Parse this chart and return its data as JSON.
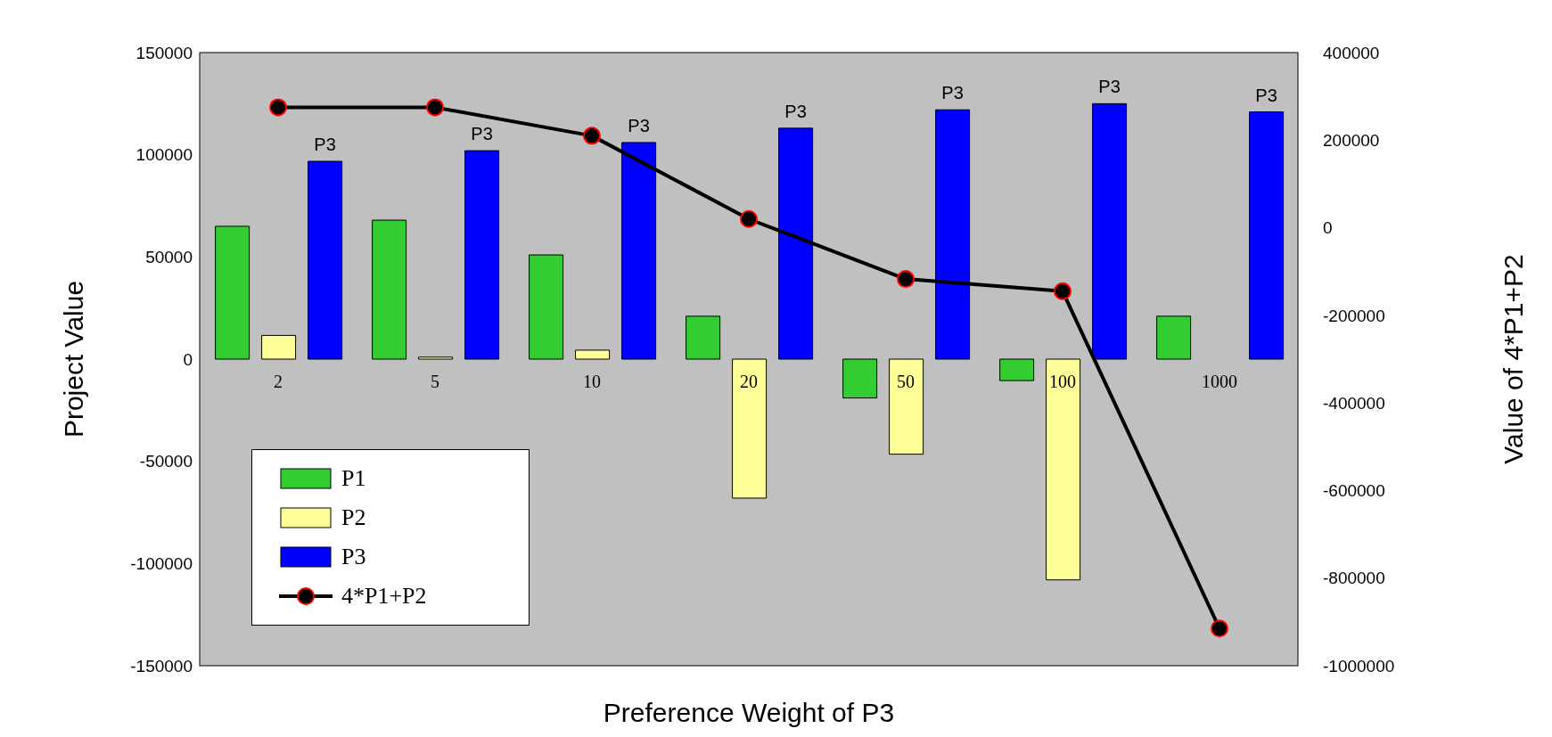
{
  "chart_data": {
    "type": "bar",
    "xlabel": "Preference Weight of P3",
    "ylabel": "Project Value",
    "y2label": "Value of  4*P1+P2",
    "categories": [
      "2",
      "5",
      "10",
      "20",
      "50",
      "100",
      "1000"
    ],
    "series": [
      {
        "name": "P1",
        "color": "#33cc33",
        "values": [
          65000,
          68000,
          51000,
          21000,
          -19000,
          -10500,
          21000
        ]
      },
      {
        "name": "P2",
        "color": "#ffff99",
        "values": [
          11600,
          1000,
          4400,
          -68000,
          -46500,
          -108000,
          0
        ]
      },
      {
        "name": "P3",
        "color": "#0000ff",
        "values": [
          96800,
          102000,
          106000,
          113000,
          122000,
          125000,
          121000
        ],
        "value_labels": [
          "P3",
          "P3",
          "P3",
          "P3",
          "P3",
          "P3",
          "P3"
        ]
      },
      {
        "name": "4*P1+P2",
        "type": "line",
        "axis": "y2",
        "color": "#000000",
        "marker": "circle",
        "values": [
          275000,
          275000,
          210000,
          20000,
          -117000,
          -145000,
          -915000
        ]
      }
    ],
    "ylim": [
      -150000,
      150000
    ],
    "yticks": [
      -150000,
      -100000,
      -50000,
      0,
      50000,
      100000,
      150000
    ],
    "y2lim": [
      -1000000,
      400000
    ],
    "y2ticks": [
      -1000000,
      -800000,
      -600000,
      -400000,
      -200000,
      0,
      200000,
      400000
    ],
    "grid": false,
    "legend": "bottom left"
  }
}
